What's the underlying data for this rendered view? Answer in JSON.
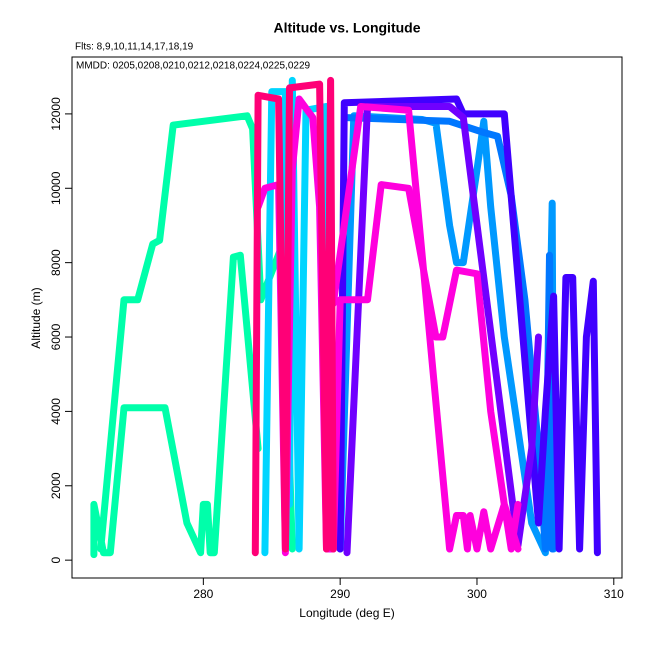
{
  "chart_data": {
    "type": "line",
    "title": "Altitude vs. Longitude",
    "annotations": [
      "Flts: 8,9,10,11,14,17,18,19",
      "MMDD: 0205,0208,0210,0212,0218,0224,0225,0229"
    ],
    "x_label": "Longitude (deg E)",
    "y_label": "Altitude (m)",
    "xlim": [
      270.4,
      310.6
    ],
    "ylim": [
      -480,
      13530
    ],
    "xticks": [
      280,
      290,
      300,
      310
    ],
    "yticks": [
      0,
      2000,
      4000,
      6000,
      8000,
      10000,
      12000
    ],
    "grid": false,
    "series": [
      {
        "color": "#00FFAA",
        "x": [
          272,
          272,
          272.7,
          273.2,
          274.2,
          277.2,
          278.8,
          279.8,
          280,
          280.3,
          280.5,
          280.8,
          282.2,
          282.7,
          284,
          null,
          272.5,
          274.2,
          275.2,
          276.3,
          276.8,
          277.8,
          283.2,
          283.6,
          284.2,
          285.8,
          286.5
        ],
        "values": [
          150,
          1500,
          200,
          200,
          4100,
          4100,
          1000,
          200,
          1500,
          1500,
          200,
          200,
          8150,
          8200,
          3000,
          null,
          300,
          7000,
          7000,
          8500,
          8600,
          11700,
          11950,
          11600,
          7000,
          8500,
          300
        ]
      },
      {
        "color": "#00D5FF",
        "x": [
          284.5,
          285,
          286,
          286.3,
          286.5,
          287,
          287.5,
          289,
          289.5
        ],
        "values": [
          200,
          12600,
          12600,
          1500,
          12900,
          300,
          12100,
          12200,
          300
        ]
      },
      {
        "color": "#0099FF",
        "x": [
          290,
          291,
          296,
          297,
          298,
          298.5,
          299,
          300,
          300.5,
          301,
          302,
          304,
          305,
          305.5,
          305.6
        ],
        "values": [
          300,
          11950,
          11850,
          11750,
          9000,
          8000,
          8000,
          10500,
          11800,
          9500,
          6000,
          1000,
          200,
          9600,
          300
        ]
      },
      {
        "color": "#0077FF",
        "x": [
          290.5,
          298,
          300.5,
          301.5,
          302.5,
          303.5,
          304.5,
          305,
          305.3,
          305.5
        ],
        "values": [
          11900,
          11800,
          11500,
          11400,
          9800,
          7000,
          3000,
          300,
          8200,
          300
        ]
      },
      {
        "color": "#4000FF",
        "x": [
          290,
          290.3,
          298.5,
          299,
          302,
          304.5,
          305,
          305.6,
          306,
          306.5,
          307,
          307.5,
          308,
          308.5,
          308.8
        ],
        "values": [
          300,
          12300,
          12400,
          12000,
          12000,
          1000,
          4000,
          7100,
          300,
          7600,
          7600,
          300,
          6000,
          7500,
          200
        ]
      },
      {
        "color": "#7000FF",
        "x": [
          290.5,
          292,
          298,
          299,
          303,
          304,
          304.5
        ],
        "values": [
          200,
          12200,
          12200,
          11900,
          400,
          3000,
          6000
        ]
      },
      {
        "color": "#FF00DD",
        "x": [
          284,
          284.5,
          285.5,
          286,
          286.5,
          287,
          288,
          288.5,
          289,
          289.5,
          290,
          292,
          293,
          295,
          296,
          297,
          297.5,
          298.5,
          300,
          301,
          302,
          302.5,
          303,
          null,
          289.5,
          291.5,
          295,
          298,
          298.5,
          299,
          299.3,
          299.5,
          300,
          300.5,
          301,
          302,
          303
        ],
        "values": [
          9500,
          10000,
          10100,
          200,
          10500,
          12400,
          11900,
          9500,
          300,
          300,
          7000,
          7000,
          10100,
          10000,
          8000,
          6000,
          6000,
          7800,
          7700,
          4000,
          1500,
          300,
          1500,
          null,
          6900,
          12200,
          12100,
          300,
          1200,
          1200,
          300,
          1200,
          300,
          1300,
          300,
          1500,
          300
        ]
      },
      {
        "color": "#FF0077",
        "x": [
          283.8,
          284,
          285.5,
          286,
          286.3,
          288.5,
          289,
          289.3,
          289.5
        ],
        "values": [
          200,
          12500,
          12400,
          300,
          12700,
          12800,
          300,
          12900,
          300
        ]
      }
    ]
  }
}
